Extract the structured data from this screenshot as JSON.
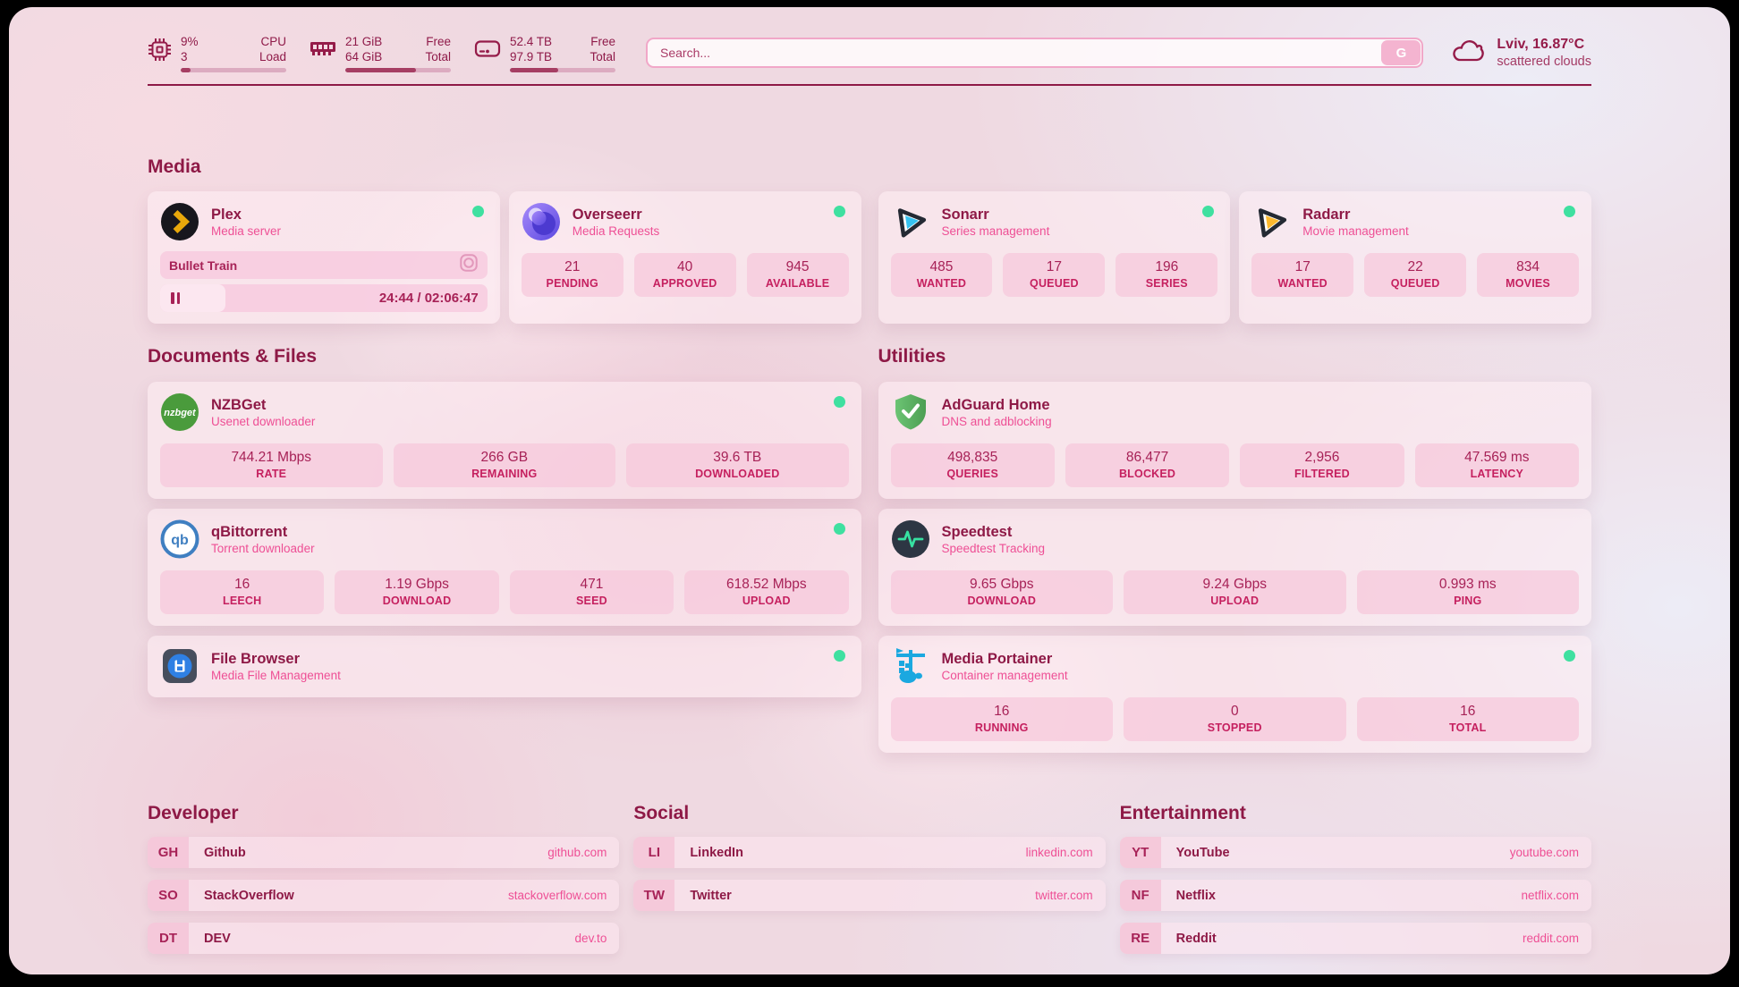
{
  "header": {
    "resources": [
      {
        "icon": "cpu-icon",
        "value_top": "9%",
        "value_bottom": "3",
        "label_top": "CPU",
        "label_bottom": "Load",
        "percent": 9
      },
      {
        "icon": "memory-icon",
        "value_top": "21 GiB",
        "value_bottom": "64 GiB",
        "label_top": "Free",
        "label_bottom": "Total",
        "percent": 67
      },
      {
        "icon": "disk-icon",
        "value_top": "52.4 TB",
        "value_bottom": "97.9 TB",
        "label_top": "Free",
        "label_bottom": "Total",
        "percent": 46
      }
    ],
    "search": {
      "placeholder": "Search...",
      "button_label": "G"
    },
    "weather": {
      "location": "Lviv, 16.87°C",
      "condition": "scattered clouds"
    }
  },
  "sections": {
    "media": "Media",
    "documents": "Documents & Files",
    "utilities": "Utilities",
    "developer": "Developer",
    "social": "Social",
    "entertainment": "Entertainment"
  },
  "services": {
    "plex": {
      "name": "Plex",
      "desc": "Media server",
      "status": "online",
      "now_playing": {
        "title": "Bullet Train",
        "time": "24:44 / 02:06:47",
        "progress_percent": 20
      }
    },
    "overseerr": {
      "name": "Overseerr",
      "desc": "Media Requests",
      "status": "online",
      "stats": [
        {
          "value": "21",
          "label": "PENDING"
        },
        {
          "value": "40",
          "label": "APPROVED"
        },
        {
          "value": "945",
          "label": "AVAILABLE"
        }
      ]
    },
    "sonarr": {
      "name": "Sonarr",
      "desc": "Series management",
      "status": "online",
      "stats": [
        {
          "value": "485",
          "label": "WANTED"
        },
        {
          "value": "17",
          "label": "QUEUED"
        },
        {
          "value": "196",
          "label": "SERIES"
        }
      ]
    },
    "radarr": {
      "name": "Radarr",
      "desc": "Movie management",
      "status": "online",
      "stats": [
        {
          "value": "17",
          "label": "WANTED"
        },
        {
          "value": "22",
          "label": "QUEUED"
        },
        {
          "value": "834",
          "label": "MOVIES"
        }
      ]
    },
    "nzbget": {
      "name": "NZBGet",
      "desc": "Usenet downloader",
      "status": "online",
      "stats": [
        {
          "value": "744.21 Mbps",
          "label": "RATE"
        },
        {
          "value": "266 GB",
          "label": "REMAINING"
        },
        {
          "value": "39.6 TB",
          "label": "DOWNLOADED"
        }
      ]
    },
    "qbittorrent": {
      "name": "qBittorrent",
      "desc": "Torrent downloader",
      "status": "online",
      "stats": [
        {
          "value": "16",
          "label": "LEECH"
        },
        {
          "value": "1.19 Gbps",
          "label": "DOWNLOAD"
        },
        {
          "value": "471",
          "label": "SEED"
        },
        {
          "value": "618.52 Mbps",
          "label": "UPLOAD"
        }
      ]
    },
    "filebrowser": {
      "name": "File Browser",
      "desc": "Media File Management",
      "status": "online"
    },
    "adguard": {
      "name": "AdGuard Home",
      "desc": "DNS and adblocking",
      "stats": [
        {
          "value": "498,835",
          "label": "QUERIES"
        },
        {
          "value": "86,477",
          "label": "BLOCKED"
        },
        {
          "value": "2,956",
          "label": "FILTERED"
        },
        {
          "value": "47.569 ms",
          "label": "LATENCY"
        }
      ]
    },
    "speedtest": {
      "name": "Speedtest",
      "desc": "Speedtest Tracking",
      "stats": [
        {
          "value": "9.65 Gbps",
          "label": "DOWNLOAD"
        },
        {
          "value": "9.24 Gbps",
          "label": "UPLOAD"
        },
        {
          "value": "0.993 ms",
          "label": "PING"
        }
      ]
    },
    "portainer": {
      "name": "Media Portainer",
      "desc": "Container management",
      "status": "online",
      "stats": [
        {
          "value": "16",
          "label": "RUNNING"
        },
        {
          "value": "0",
          "label": "STOPPED"
        },
        {
          "value": "16",
          "label": "TOTAL"
        }
      ]
    }
  },
  "bookmarks": {
    "developer": [
      {
        "abbr": "GH",
        "name": "Github",
        "url": "github.com"
      },
      {
        "abbr": "SO",
        "name": "StackOverflow",
        "url": "stackoverflow.com"
      },
      {
        "abbr": "DT",
        "name": "DEV",
        "url": "dev.to"
      }
    ],
    "social": [
      {
        "abbr": "LI",
        "name": "LinkedIn",
        "url": "linkedin.com"
      },
      {
        "abbr": "TW",
        "name": "Twitter",
        "url": "twitter.com"
      }
    ],
    "entertainment": [
      {
        "abbr": "YT",
        "name": "YouTube",
        "url": "youtube.com"
      },
      {
        "abbr": "NF",
        "name": "Netflix",
        "url": "netflix.com"
      },
      {
        "abbr": "RE",
        "name": "Reddit",
        "url": "reddit.com"
      }
    ]
  },
  "colors": {
    "accent": "#8e1946",
    "pink": "#ee4f95",
    "status_online": "#3fe0a0"
  }
}
